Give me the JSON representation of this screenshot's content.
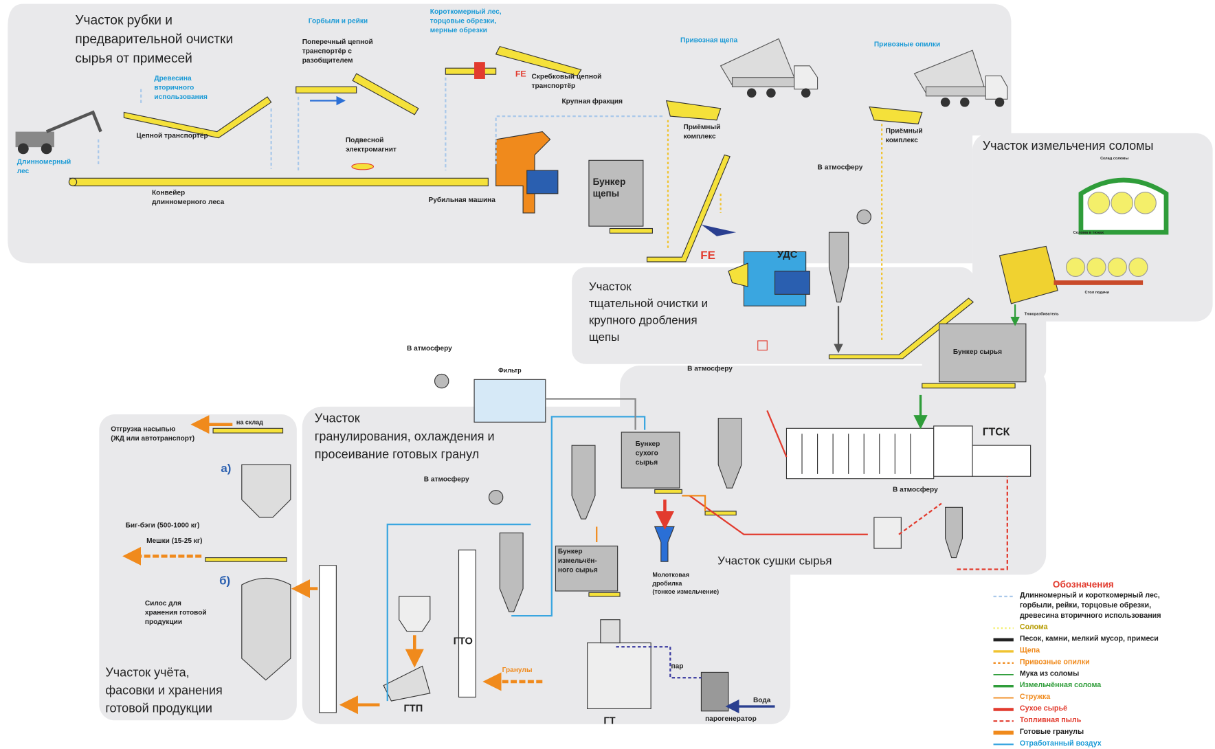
{
  "sections": [
    {
      "lines": [
        "Участок рубки и",
        "предварительной очистки",
        "сырья от примесей"
      ]
    },
    {
      "lines": [
        "Участок  измельчения соломы"
      ]
    },
    {
      "lines": [
        "Участок",
        "тщательной очистки и",
        "крупного дробления",
        "щепы"
      ]
    },
    {
      "lines": [
        "Участок",
        "гранулирования, охлаждения и",
        "просеивание готовых гранул"
      ]
    },
    {
      "lines": [
        "Участок сушки сырья"
      ]
    },
    {
      "lines": [
        "Участок учёта,",
        "фасовки и хранения",
        "готовой продукции"
      ]
    }
  ],
  "labels": [
    {
      "lines": [
        "Древесина",
        "вторичного",
        "использования"
      ]
    },
    {
      "lines": [
        "Длинномерный",
        "лес"
      ]
    },
    {
      "lines": [
        "Горбыли и рейки"
      ]
    },
    {
      "lines": [
        "Короткомерный лес,",
        "торцовые обрезки,",
        "мерные обрезки"
      ]
    },
    {
      "lines": [
        "Привозная щепа"
      ]
    },
    {
      "lines": [
        "Привозные опилки"
      ]
    },
    {
      "lines": [
        "Цепной транспортёр"
      ]
    },
    {
      "lines": [
        "Поперечный цепной",
        "транспортёр с",
        "разобщителем"
      ]
    },
    {
      "lines": [
        "Подвесной",
        "электромагнит"
      ]
    },
    {
      "lines": [
        "Конвейер",
        "длинномерного леса"
      ]
    },
    {
      "lines": [
        "Скребковый цепной",
        "транспортёр"
      ]
    },
    {
      "lines": [
        "Крупная фракция"
      ]
    },
    {
      "lines": [
        "Рубильная машина"
      ]
    },
    {
      "lines": [
        "Бункер",
        "щепы"
      ]
    },
    {
      "lines": [
        "Приёмный",
        "комплекс"
      ]
    },
    {
      "lines": [
        "Приёмный",
        "комплекс"
      ]
    },
    {
      "lines": [
        "В атмосферу"
      ]
    },
    {
      "lines": [
        "УДС"
      ]
    },
    {
      "lines": [
        "FE"
      ]
    },
    {
      "lines": [
        "FE"
      ]
    },
    {
      "lines": [
        "Бункер сырья"
      ]
    },
    {
      "lines": [
        "Склад соломы"
      ]
    },
    {
      "lines": [
        "Солома в тюках"
      ]
    },
    {
      "lines": [
        "Стол подачи"
      ]
    },
    {
      "lines": [
        "Тюкоразбиватель"
      ]
    },
    {
      "lines": [
        "В атмосферу"
      ]
    },
    {
      "lines": [
        "Фильтр"
      ]
    },
    {
      "lines": [
        "В атмосферу"
      ]
    },
    {
      "lines": [
        "Бункер",
        "сухого",
        "сырья"
      ]
    },
    {
      "lines": [
        "ГТСК"
      ]
    },
    {
      "lines": [
        "В атмосферу"
      ]
    },
    {
      "lines": [
        "В атмосферу"
      ]
    },
    {
      "lines": [
        "Бункер",
        "измельчён-",
        "ного сырья"
      ]
    },
    {
      "lines": [
        "Молотковая",
        "дробилка",
        "(тонкое измельчение)"
      ]
    },
    {
      "lines": [
        "ГТО"
      ]
    },
    {
      "lines": [
        "ГТП"
      ]
    },
    {
      "lines": [
        "ГТ"
      ]
    },
    {
      "lines": [
        "пар"
      ]
    },
    {
      "lines": [
        "Вода"
      ]
    },
    {
      "lines": [
        "парогенератор"
      ]
    },
    {
      "lines": [
        "Гранулы"
      ]
    },
    {
      "lines": [
        "Отгрузка насыпью",
        "(ЖД или автотранспорт)"
      ]
    },
    {
      "lines": [
        "на склад"
      ]
    },
    {
      "lines": [
        "а)"
      ]
    },
    {
      "lines": [
        "Биг-бэги (500-1000 кг)"
      ]
    },
    {
      "lines": [
        "Мешки (15-25 кг)"
      ]
    },
    {
      "lines": [
        "б)"
      ]
    },
    {
      "lines": [
        "Силос для",
        "хранения готовой",
        "продукции"
      ]
    }
  ],
  "legend": {
    "title": "Обозначения",
    "items": [
      {
        "lines": [
          "Длинномерный и короткомерный лес,",
          "горбыли, рейки, торцовые обрезки,",
          "древесина вторичного использования"
        ]
      },
      {
        "lines": [
          "Солома"
        ]
      },
      {
        "lines": [
          "Песок, камни, мелкий мусор, примеси"
        ]
      },
      {
        "lines": [
          "Щепа"
        ]
      },
      {
        "lines": [
          "Привозные опилки"
        ]
      },
      {
        "lines": [
          "Мука из соломы"
        ]
      },
      {
        "lines": [
          "Измельчённая солома"
        ]
      },
      {
        "lines": [
          "Стружка"
        ]
      },
      {
        "lines": [
          "Сухое сырьё"
        ]
      },
      {
        "lines": [
          "Топливная пыль"
        ]
      },
      {
        "lines": [
          "Готовые гранулы"
        ]
      },
      {
        "lines": [
          "Отработанный воздух"
        ]
      }
    ]
  }
}
